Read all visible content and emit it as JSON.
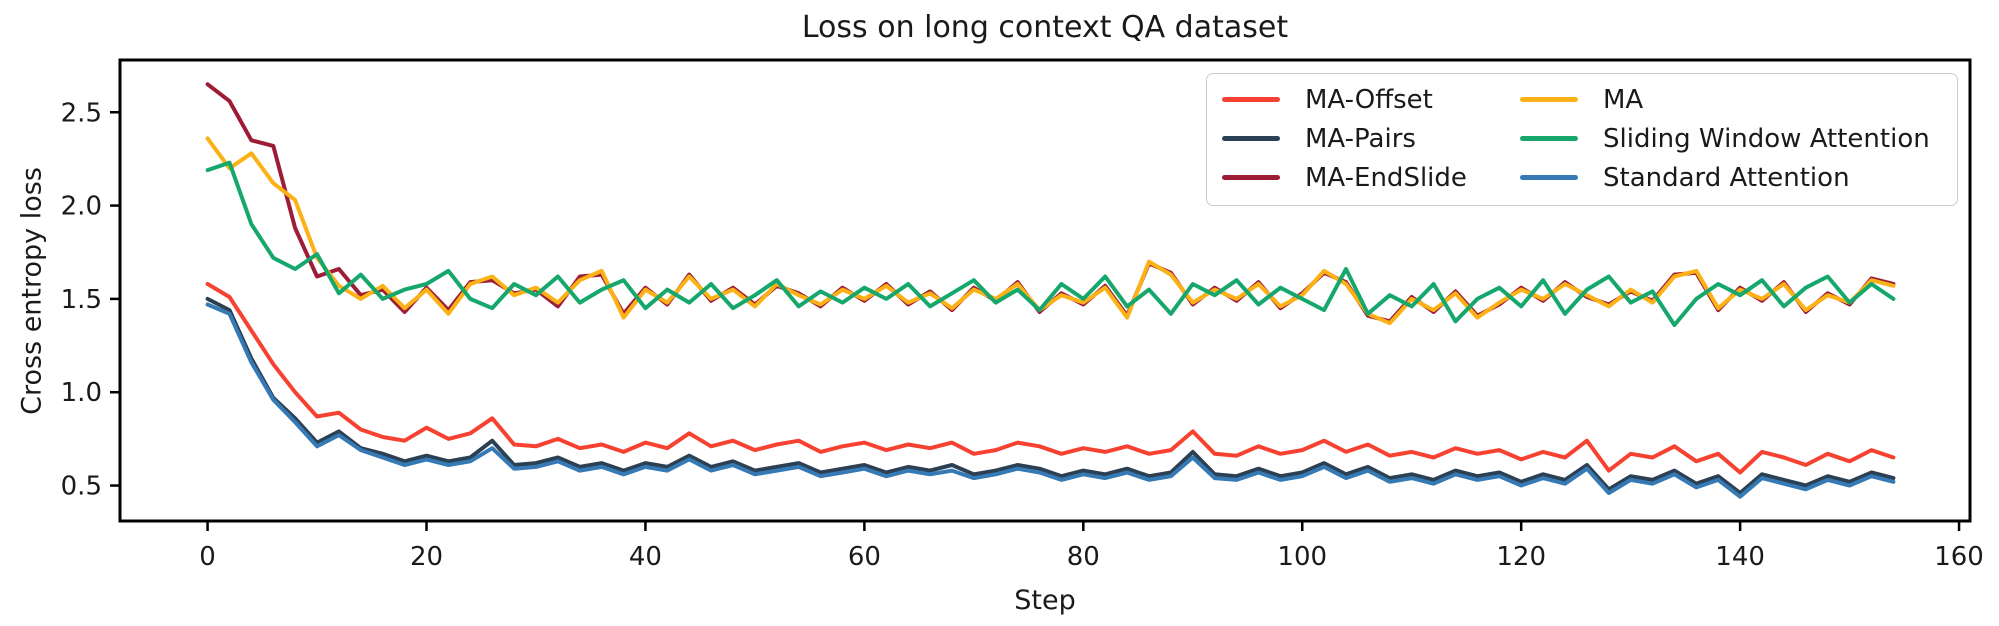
{
  "chart_data": {
    "type": "line",
    "title": "Loss on long context QA dataset",
    "xlabel": "Step",
    "ylabel": "Cross entropy loss",
    "xlim": [
      -8,
      161
    ],
    "ylim": [
      0.31,
      2.78
    ],
    "grid": false,
    "legend_position": "upper right",
    "legend_columns": 2,
    "xticks": [
      0,
      20,
      40,
      60,
      80,
      100,
      120,
      140,
      160
    ],
    "xtick_labels": [
      "0",
      "20",
      "40",
      "60",
      "80",
      "100",
      "120",
      "140",
      "160"
    ],
    "yticks": [
      0.5,
      1.0,
      1.5,
      2.0,
      2.5
    ],
    "ytick_labels": [
      "0.5",
      "1.0",
      "1.5",
      "2.0",
      "2.5"
    ],
    "steps": [
      0,
      2,
      4,
      6,
      8,
      10,
      12,
      14,
      16,
      18,
      20,
      22,
      24,
      26,
      28,
      30,
      32,
      34,
      36,
      38,
      40,
      42,
      44,
      46,
      48,
      50,
      52,
      54,
      56,
      58,
      60,
      62,
      64,
      66,
      68,
      70,
      72,
      74,
      76,
      78,
      80,
      82,
      84,
      86,
      88,
      90,
      92,
      94,
      96,
      98,
      100,
      102,
      104,
      106,
      108,
      110,
      112,
      114,
      116,
      118,
      120,
      122,
      124,
      126,
      128,
      130,
      132,
      134,
      136,
      138,
      140,
      142,
      144,
      146,
      148,
      150,
      152,
      154
    ],
    "series": [
      {
        "name": "MA-Offset",
        "color": "#f74231",
        "values": [
          1.58,
          1.51,
          1.33,
          1.15,
          1.0,
          0.87,
          0.89,
          0.8,
          0.76,
          0.74,
          0.81,
          0.75,
          0.78,
          0.86,
          0.72,
          0.71,
          0.75,
          0.7,
          0.72,
          0.68,
          0.73,
          0.7,
          0.78,
          0.71,
          0.74,
          0.69,
          0.72,
          0.74,
          0.68,
          0.71,
          0.73,
          0.69,
          0.72,
          0.7,
          0.73,
          0.67,
          0.69,
          0.73,
          0.71,
          0.67,
          0.7,
          0.68,
          0.71,
          0.67,
          0.69,
          0.79,
          0.67,
          0.66,
          0.71,
          0.67,
          0.69,
          0.74,
          0.68,
          0.72,
          0.66,
          0.68,
          0.65,
          0.7,
          0.67,
          0.69,
          0.64,
          0.68,
          0.65,
          0.74,
          0.58,
          0.67,
          0.65,
          0.71,
          0.63,
          0.67,
          0.57,
          0.68,
          0.65,
          0.61,
          0.67,
          0.63,
          0.69,
          0.65
        ]
      },
      {
        "name": "MA-Pairs",
        "color": "#2c4054",
        "values": [
          1.5,
          1.44,
          1.18,
          0.97,
          0.86,
          0.73,
          0.79,
          0.7,
          0.67,
          0.63,
          0.66,
          0.63,
          0.65,
          0.74,
          0.61,
          0.62,
          0.65,
          0.6,
          0.62,
          0.58,
          0.62,
          0.6,
          0.66,
          0.6,
          0.63,
          0.58,
          0.6,
          0.62,
          0.57,
          0.59,
          0.61,
          0.57,
          0.6,
          0.58,
          0.61,
          0.56,
          0.58,
          0.61,
          0.59,
          0.55,
          0.58,
          0.56,
          0.59,
          0.55,
          0.57,
          0.68,
          0.56,
          0.55,
          0.59,
          0.55,
          0.57,
          0.62,
          0.56,
          0.6,
          0.54,
          0.56,
          0.53,
          0.58,
          0.55,
          0.57,
          0.52,
          0.56,
          0.53,
          0.61,
          0.48,
          0.55,
          0.53,
          0.58,
          0.51,
          0.55,
          0.46,
          0.56,
          0.53,
          0.5,
          0.55,
          0.52,
          0.57,
          0.54
        ]
      },
      {
        "name": "MA-EndSlide",
        "color": "#9c1d35",
        "values": [
          2.65,
          2.56,
          2.35,
          2.32,
          1.88,
          1.62,
          1.66,
          1.52,
          1.55,
          1.43,
          1.56,
          1.44,
          1.59,
          1.6,
          1.53,
          1.55,
          1.46,
          1.62,
          1.63,
          1.42,
          1.56,
          1.47,
          1.63,
          1.49,
          1.56,
          1.47,
          1.57,
          1.53,
          1.46,
          1.56,
          1.49,
          1.58,
          1.47,
          1.54,
          1.44,
          1.56,
          1.49,
          1.59,
          1.43,
          1.53,
          1.47,
          1.57,
          1.41,
          1.69,
          1.64,
          1.47,
          1.56,
          1.49,
          1.59,
          1.45,
          1.53,
          1.64,
          1.59,
          1.41,
          1.38,
          1.51,
          1.43,
          1.54,
          1.41,
          1.47,
          1.56,
          1.49,
          1.59,
          1.51,
          1.47,
          1.54,
          1.49,
          1.63,
          1.64,
          1.44,
          1.56,
          1.49,
          1.59,
          1.43,
          1.53,
          1.47,
          1.61,
          1.58
        ]
      },
      {
        "name": "MA",
        "color": "#fcb216",
        "values": [
          2.36,
          2.2,
          2.28,
          2.12,
          2.03,
          1.72,
          1.57,
          1.5,
          1.57,
          1.45,
          1.55,
          1.42,
          1.58,
          1.62,
          1.52,
          1.56,
          1.48,
          1.6,
          1.65,
          1.4,
          1.55,
          1.48,
          1.62,
          1.5,
          1.55,
          1.46,
          1.58,
          1.52,
          1.47,
          1.55,
          1.5,
          1.57,
          1.48,
          1.53,
          1.45,
          1.55,
          1.5,
          1.58,
          1.44,
          1.52,
          1.48,
          1.56,
          1.4,
          1.7,
          1.63,
          1.48,
          1.55,
          1.5,
          1.58,
          1.46,
          1.52,
          1.65,
          1.58,
          1.42,
          1.37,
          1.5,
          1.44,
          1.53,
          1.4,
          1.48,
          1.55,
          1.5,
          1.58,
          1.52,
          1.46,
          1.55,
          1.48,
          1.62,
          1.65,
          1.45,
          1.55,
          1.5,
          1.58,
          1.44,
          1.52,
          1.48,
          1.6,
          1.57
        ]
      },
      {
        "name": "Sliding Window Attention",
        "color": "#16a76c",
        "values": [
          2.19,
          2.23,
          1.9,
          1.72,
          1.66,
          1.74,
          1.53,
          1.63,
          1.5,
          1.55,
          1.58,
          1.65,
          1.5,
          1.45,
          1.58,
          1.52,
          1.62,
          1.48,
          1.55,
          1.6,
          1.45,
          1.55,
          1.48,
          1.58,
          1.45,
          1.52,
          1.6,
          1.46,
          1.54,
          1.48,
          1.56,
          1.5,
          1.58,
          1.46,
          1.53,
          1.6,
          1.48,
          1.55,
          1.44,
          1.58,
          1.5,
          1.62,
          1.46,
          1.55,
          1.42,
          1.58,
          1.52,
          1.6,
          1.47,
          1.56,
          1.5,
          1.44,
          1.66,
          1.42,
          1.52,
          1.46,
          1.58,
          1.38,
          1.5,
          1.56,
          1.46,
          1.6,
          1.42,
          1.55,
          1.62,
          1.48,
          1.54,
          1.36,
          1.5,
          1.58,
          1.52,
          1.6,
          1.46,
          1.56,
          1.62,
          1.48,
          1.58,
          1.5
        ]
      },
      {
        "name": "Standard Attention",
        "color": "#3579b5",
        "values": [
          1.47,
          1.42,
          1.16,
          0.96,
          0.84,
          0.71,
          0.77,
          0.69,
          0.65,
          0.61,
          0.64,
          0.61,
          0.63,
          0.7,
          0.59,
          0.6,
          0.63,
          0.58,
          0.6,
          0.56,
          0.6,
          0.58,
          0.64,
          0.58,
          0.61,
          0.56,
          0.58,
          0.6,
          0.55,
          0.57,
          0.59,
          0.55,
          0.58,
          0.56,
          0.58,
          0.54,
          0.56,
          0.59,
          0.57,
          0.53,
          0.56,
          0.54,
          0.57,
          0.53,
          0.55,
          0.65,
          0.54,
          0.53,
          0.57,
          0.53,
          0.55,
          0.6,
          0.54,
          0.58,
          0.52,
          0.54,
          0.51,
          0.56,
          0.53,
          0.55,
          0.5,
          0.54,
          0.51,
          0.59,
          0.46,
          0.53,
          0.51,
          0.56,
          0.49,
          0.53,
          0.44,
          0.54,
          0.51,
          0.48,
          0.53,
          0.5,
          0.55,
          0.52
        ]
      }
    ],
    "style": {
      "axis_color": "#000000",
      "text_color": "#1a1a1a",
      "line_width": 4,
      "frame_width": 3,
      "tick_width": 2.5,
      "legend_border_color": "#cccccc"
    }
  }
}
